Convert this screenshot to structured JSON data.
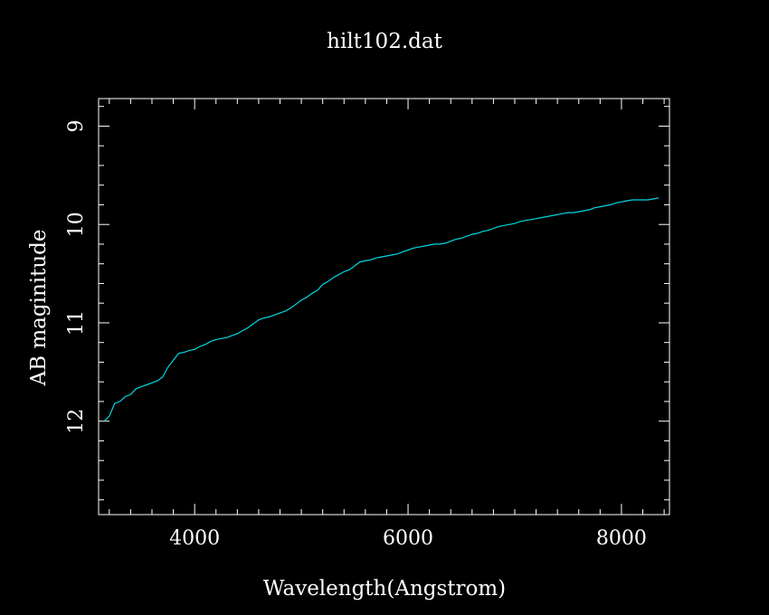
{
  "chart_data": {
    "type": "line",
    "title": "hilt102.dat",
    "xlabel": "Wavelength(Angstrom)",
    "ylabel": "AB maginitude",
    "xlim": [
      3100,
      8450
    ],
    "ylim": [
      12.95,
      8.72
    ],
    "y_inverted": true,
    "x_major_ticks": [
      4000,
      6000,
      8000
    ],
    "x_tick_labels": [
      "4000",
      "6000",
      "8000"
    ],
    "x_minor_step": 200,
    "y_major_ticks": [
      9,
      10,
      11,
      12
    ],
    "y_tick_labels": [
      "9",
      "10",
      "11",
      "12"
    ],
    "y_minor_step": 0.2,
    "grid": false,
    "colors": {
      "background": "#000000",
      "axes": "#ffffff",
      "line": "#00d8e0"
    },
    "series": [
      {
        "values": [
          [
            3150,
            12.0
          ],
          [
            3200,
            11.95
          ],
          [
            3250,
            11.82
          ],
          [
            3300,
            11.8
          ],
          [
            3350,
            11.75
          ],
          [
            3400,
            11.73
          ],
          [
            3450,
            11.67
          ],
          [
            3500,
            11.65
          ],
          [
            3550,
            11.63
          ],
          [
            3600,
            11.61
          ],
          [
            3650,
            11.59
          ],
          [
            3700,
            11.55
          ],
          [
            3750,
            11.45
          ],
          [
            3800,
            11.38
          ],
          [
            3850,
            11.31
          ],
          [
            3900,
            11.3
          ],
          [
            3950,
            11.28
          ],
          [
            4000,
            11.27
          ],
          [
            4050,
            11.24
          ],
          [
            4100,
            11.22
          ],
          [
            4150,
            11.19
          ],
          [
            4200,
            11.17
          ],
          [
            4250,
            11.16
          ],
          [
            4300,
            11.15
          ],
          [
            4350,
            11.13
          ],
          [
            4400,
            11.11
          ],
          [
            4450,
            11.08
          ],
          [
            4500,
            11.05
          ],
          [
            4550,
            11.01
          ],
          [
            4600,
            10.97
          ],
          [
            4650,
            10.95
          ],
          [
            4700,
            10.94
          ],
          [
            4750,
            10.92
          ],
          [
            4800,
            10.9
          ],
          [
            4850,
            10.88
          ],
          [
            4900,
            10.85
          ],
          [
            4950,
            10.81
          ],
          [
            5000,
            10.77
          ],
          [
            5050,
            10.74
          ],
          [
            5100,
            10.7
          ],
          [
            5150,
            10.67
          ],
          [
            5200,
            10.61
          ],
          [
            5250,
            10.58
          ],
          [
            5300,
            10.54
          ],
          [
            5350,
            10.51
          ],
          [
            5400,
            10.48
          ],
          [
            5450,
            10.46
          ],
          [
            5500,
            10.42
          ],
          [
            5550,
            10.38
          ],
          [
            5600,
            10.37
          ],
          [
            5650,
            10.36
          ],
          [
            5700,
            10.34
          ],
          [
            5750,
            10.33
          ],
          [
            5800,
            10.32
          ],
          [
            5850,
            10.31
          ],
          [
            5900,
            10.3
          ],
          [
            5950,
            10.28
          ],
          [
            6000,
            10.26
          ],
          [
            6050,
            10.24
          ],
          [
            6100,
            10.23
          ],
          [
            6150,
            10.22
          ],
          [
            6200,
            10.21
          ],
          [
            6250,
            10.2
          ],
          [
            6300,
            10.2
          ],
          [
            6350,
            10.19
          ],
          [
            6400,
            10.17
          ],
          [
            6450,
            10.15
          ],
          [
            6500,
            10.14
          ],
          [
            6550,
            10.12
          ],
          [
            6600,
            10.1
          ],
          [
            6650,
            10.09
          ],
          [
            6700,
            10.07
          ],
          [
            6750,
            10.06
          ],
          [
            6800,
            10.04
          ],
          [
            6850,
            10.02
          ],
          [
            6900,
            10.01
          ],
          [
            6950,
            10.0
          ],
          [
            7000,
            9.99
          ],
          [
            7050,
            9.97
          ],
          [
            7100,
            9.96
          ],
          [
            7150,
            9.95
          ],
          [
            7200,
            9.94
          ],
          [
            7250,
            9.93
          ],
          [
            7300,
            9.92
          ],
          [
            7350,
            9.91
          ],
          [
            7400,
            9.9
          ],
          [
            7450,
            9.89
          ],
          [
            7500,
            9.88
          ],
          [
            7550,
            9.88
          ],
          [
            7600,
            9.87
          ],
          [
            7650,
            9.86
          ],
          [
            7700,
            9.85
          ],
          [
            7750,
            9.83
          ],
          [
            7800,
            9.82
          ],
          [
            7850,
            9.81
          ],
          [
            7900,
            9.8
          ],
          [
            7950,
            9.78
          ],
          [
            8000,
            9.77
          ],
          [
            8050,
            9.76
          ],
          [
            8100,
            9.75
          ],
          [
            8150,
            9.75
          ],
          [
            8200,
            9.75
          ],
          [
            8250,
            9.75
          ],
          [
            8300,
            9.74
          ],
          [
            8350,
            9.73
          ]
        ]
      }
    ]
  }
}
